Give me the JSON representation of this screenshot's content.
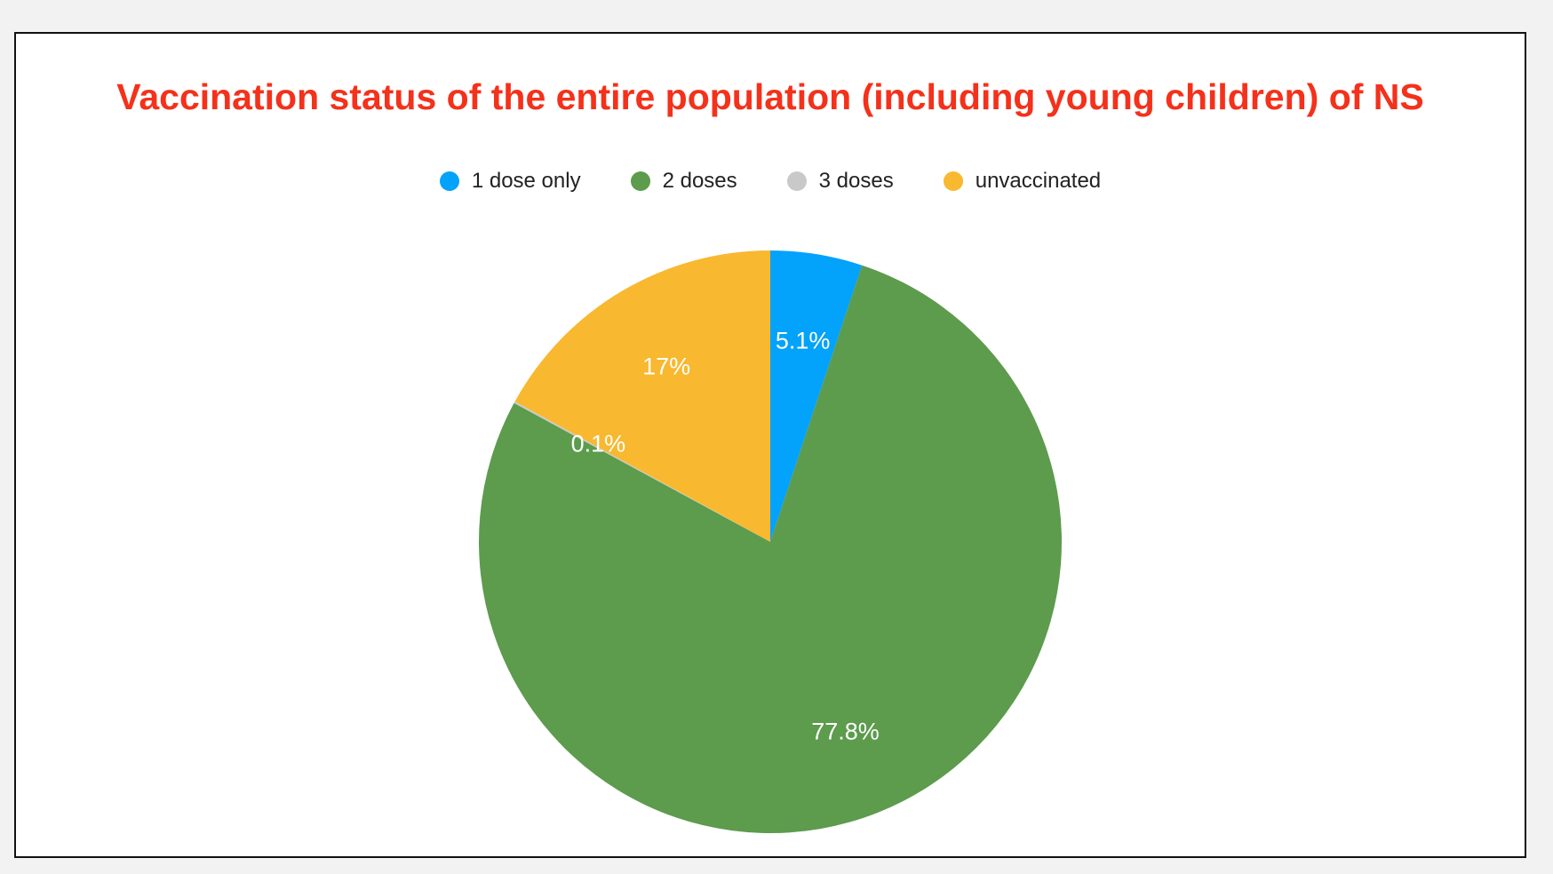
{
  "chart_data": {
    "type": "pie",
    "title": "Vaccination status of the entire population (including young children) of NS",
    "title_color": "#f4311b",
    "legend_position": "top",
    "start_angle_deg": 0,
    "direction": "clockwise",
    "slices": [
      {
        "label": "1 dose only",
        "value": 5.1,
        "data_label": "5.1%",
        "color": "#03a2fb"
      },
      {
        "label": "2 doses",
        "value": 77.8,
        "data_label": "77.8%",
        "color": "#5d9b4d"
      },
      {
        "label": "3 doses",
        "value": 0.1,
        "data_label": "0.1%",
        "color": "#c9c9c9"
      },
      {
        "label": "unvaccinated",
        "value": 17,
        "data_label": "17%",
        "color": "#f8b830"
      }
    ]
  }
}
